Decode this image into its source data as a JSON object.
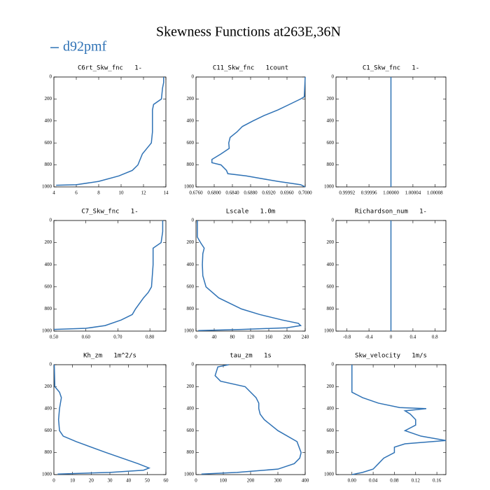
{
  "title": "Skewness Functions at263E,36N",
  "legend": {
    "label": "d92pmf",
    "color": "#2f72b5"
  },
  "chart_data": [
    {
      "type": "line",
      "title": "C6rt_Skw_fnc   1-",
      "color": "#2f72b5",
      "xlim": [
        4,
        14
      ],
      "xticks": [
        4,
        6,
        8,
        10,
        12,
        14
      ],
      "ylim": [
        1000,
        0
      ],
      "yticks": [
        0,
        200,
        400,
        600,
        800,
        1000
      ],
      "x": [
        13.8,
        13.8,
        13.7,
        13.6,
        12.9,
        12.8,
        12.8,
        12.8,
        12.7,
        12.3,
        11.9,
        11.5,
        11.0,
        9.8,
        8.0,
        6.0,
        4.2
      ],
      "y": [
        0,
        50,
        100,
        200,
        250,
        300,
        400,
        500,
        600,
        650,
        700,
        800,
        850,
        900,
        950,
        980,
        985
      ]
    },
    {
      "type": "line",
      "title": "C11_Skw_fnc   1count",
      "color": "#2f72b5",
      "xlim": [
        0.676,
        0.7
      ],
      "xticks": [
        {
          "value": 0.676,
          "label": "0.6760"
        },
        {
          "value": 0.68,
          "label": "0.6800"
        },
        {
          "value": 0.684,
          "label": "0.6840"
        },
        {
          "value": 0.688,
          "label": "0.6880"
        },
        {
          "value": 0.692,
          "label": "0.6920"
        },
        {
          "value": 0.696,
          "label": "0.6960"
        },
        {
          "value": 0.7,
          "label": "0.7000"
        }
      ],
      "ylim": [
        1000,
        0
      ],
      "yticks": [
        0,
        200,
        400,
        600,
        800,
        1000
      ],
      "x": [
        0.7,
        0.6998,
        0.699,
        0.6965,
        0.694,
        0.691,
        0.6885,
        0.6862,
        0.685,
        0.6835,
        0.6832,
        0.6833,
        0.6815,
        0.6795,
        0.6795,
        0.6815,
        0.6827,
        0.683,
        0.687,
        0.694,
        0.699,
        0.7
      ],
      "y": [
        0,
        180,
        200,
        250,
        300,
        350,
        400,
        450,
        500,
        550,
        600,
        650,
        700,
        750,
        780,
        800,
        850,
        880,
        900,
        950,
        980,
        1000
      ]
    },
    {
      "type": "line",
      "title": "C1_Skw_fnc   1-",
      "color": "#2f72b5",
      "xlim": [
        0.9999,
        1.0001
      ],
      "xticks": [
        0.99992,
        0.99996,
        {
          "value": 1,
          "label": "1.00000"
        },
        1.00004,
        1.00008
      ],
      "ylim": [
        1000,
        0
      ],
      "yticks": [
        0,
        200,
        400,
        600,
        800,
        1000
      ],
      "x": [
        1,
        1
      ],
      "y": [
        0,
        1000
      ]
    },
    {
      "type": "line",
      "title": "C7_Skw_fnc   1-",
      "color": "#2f72b5",
      "xlim": [
        0.5,
        0.85
      ],
      "xticks": [
        {
          "value": 0.5,
          "label": "0.50"
        },
        {
          "value": 0.6,
          "label": "0.60"
        },
        {
          "value": 0.7,
          "label": "0.70"
        },
        {
          "value": 0.8,
          "label": "0.80"
        }
      ],
      "ylim": [
        1000,
        0
      ],
      "yticks": [
        0,
        200,
        400,
        600,
        800,
        1000
      ],
      "x": [
        0.84,
        0.84,
        0.835,
        0.81,
        0.81,
        0.805,
        0.795,
        0.78,
        0.755,
        0.745,
        0.71,
        0.66,
        0.6,
        0.5
      ],
      "y": [
        0,
        100,
        200,
        250,
        400,
        600,
        650,
        700,
        800,
        850,
        900,
        950,
        975,
        985
      ]
    },
    {
      "type": "line",
      "title": "Lscale   1.0m",
      "color": "#2f72b5",
      "xlim": [
        0,
        240
      ],
      "xticks": [
        0,
        40,
        80,
        120,
        160,
        200,
        240
      ],
      "ylim": [
        1000,
        0
      ],
      "yticks": [
        0,
        200,
        400,
        600,
        800,
        1000
      ],
      "x": [
        3,
        3,
        10,
        18,
        15,
        14,
        15,
        22,
        50,
        100,
        140,
        190,
        225,
        230,
        200,
        100,
        5
      ],
      "y": [
        0,
        150,
        200,
        250,
        300,
        400,
        500,
        600,
        700,
        800,
        850,
        900,
        930,
        950,
        970,
        985,
        995
      ]
    },
    {
      "type": "line",
      "title": "Richardson_num   1-",
      "color": "#2f72b5",
      "xlim": [
        -1,
        1
      ],
      "xticks": [
        -0.8,
        -0.4,
        0,
        0.4,
        0.8
      ],
      "ylim": [
        1000,
        0
      ],
      "yticks": [
        0,
        200,
        400,
        600,
        800,
        1000
      ],
      "x": [
        0,
        0
      ],
      "y": [
        0,
        1000
      ]
    },
    {
      "type": "line",
      "title": "Kh_zm   1m^2/s",
      "color": "#2f72b5",
      "xlim": [
        0,
        60
      ],
      "xticks": [
        0,
        10,
        20,
        30,
        40,
        50,
        60
      ],
      "ylim": [
        1000,
        0
      ],
      "yticks": [
        0,
        200,
        400,
        600,
        800,
        1000
      ],
      "x": [
        0.2,
        0.5,
        3,
        4,
        3,
        2.5,
        3,
        5,
        12,
        28,
        45,
        51,
        48,
        30,
        2
      ],
      "y": [
        0,
        200,
        250,
        300,
        400,
        500,
        600,
        650,
        700,
        800,
        900,
        940,
        960,
        980,
        995
      ]
    },
    {
      "type": "line",
      "title": "tau_zm   1s",
      "color": "#2f72b5",
      "xlim": [
        0,
        400
      ],
      "xticks": [
        0,
        100,
        200,
        300,
        400
      ],
      "ylim": [
        1000,
        0
      ],
      "yticks": [
        0,
        200,
        400,
        600,
        800,
        1000
      ],
      "x": [
        120,
        80,
        70,
        90,
        180,
        220,
        230,
        230,
        235,
        250,
        300,
        370,
        385,
        380,
        360,
        300,
        150,
        20
      ],
      "y": [
        0,
        20,
        100,
        150,
        200,
        300,
        350,
        400,
        450,
        500,
        600,
        700,
        800,
        850,
        900,
        950,
        980,
        995
      ]
    },
    {
      "type": "line",
      "title": "Skw_velocity   1m/s",
      "color": "#2f72b5",
      "xlim": [
        -0.03,
        0.177
      ],
      "xticks": [
        {
          "value": 0,
          "label": "0.00"
        },
        {
          "value": 0.04,
          "label": "0.04"
        },
        {
          "value": 0.08,
          "label": "0.08"
        },
        {
          "value": 0.12,
          "label": "0.12"
        },
        {
          "value": 0.16,
          "label": "0.16"
        }
      ],
      "ylim": [
        1000,
        0
      ],
      "yticks": [
        0,
        200,
        400,
        600,
        800,
        1000
      ],
      "x": [
        0,
        0,
        0,
        0.02,
        0.05,
        0.09,
        0.14,
        0.1,
        0.11,
        0.12,
        0.12,
        0.1,
        0.13,
        0.177,
        0.1,
        0.08,
        0.08,
        0.06,
        0.05,
        0.04,
        0.02,
        0
      ],
      "y": [
        0,
        200,
        250,
        300,
        350,
        390,
        400,
        420,
        450,
        500,
        550,
        600,
        650,
        690,
        720,
        750,
        800,
        850,
        900,
        950,
        980,
        1000
      ]
    }
  ]
}
